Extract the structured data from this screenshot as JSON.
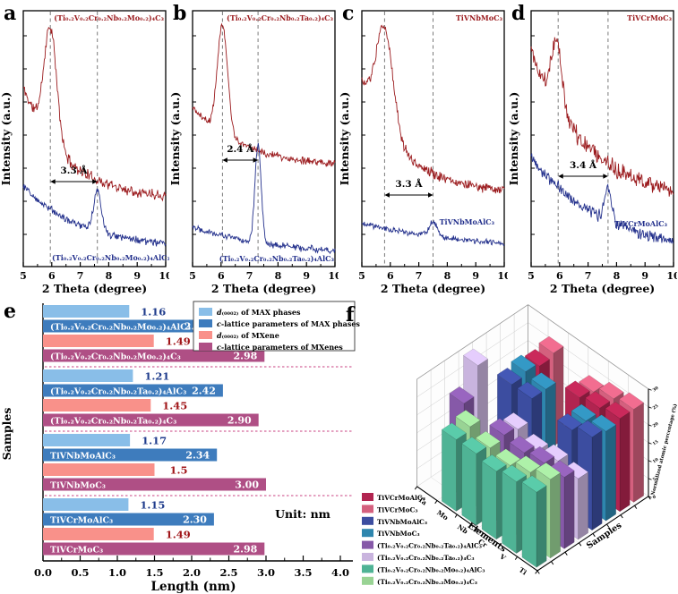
{
  "colors": {
    "mxene_curve": "#9B1B1E",
    "max_curve": "#23308C",
    "dashed_line": "#7a7a7a",
    "d_max_bar": "#89BEE8",
    "c_max_bar": "#3E7CBD",
    "d_mxene_bar": "#F9918A",
    "c_mxene_bar": "#AF4F85",
    "d_max_value_text": "#1F3C8C",
    "d_mxene_value_text": "#A01518",
    "group_separator": "#D4679A"
  },
  "chart_data": [
    {
      "id": "a",
      "letter": "a",
      "type": "line",
      "xlabel": "2 Theta (degree)",
      "ylabel": "Intensity (a.u.)",
      "xlim": [
        5,
        10
      ],
      "xticks": [
        5,
        6,
        7,
        8,
        9,
        10
      ],
      "series": [
        {
          "name": "(Ti₀.₂V₀.₂Cr₀.₂Nb₀.₂Mo₀.₂)₄C₃",
          "role": "MXene",
          "peak_2theta": 5.95
        },
        {
          "name": "(Ti₀.₂V₀.₂Cr₀.₂Nb₀.₂Mo₀.₂)₄AlC₃",
          "role": "MAX phase",
          "peak_2theta": 7.6
        }
      ],
      "dashed_lines": [
        5.95,
        7.6
      ],
      "annotation": {
        "text": "3.3 Å",
        "x1": 5.95,
        "x2": 7.6
      }
    },
    {
      "id": "b",
      "letter": "b",
      "type": "line",
      "xlabel": "2 Theta (degree)",
      "ylabel": "Intensity (a.u.)",
      "xlim": [
        5,
        10
      ],
      "xticks": [
        5,
        6,
        7,
        8,
        9,
        10
      ],
      "series": [
        {
          "name": "(Ti₀.₂V₀.₂Cr₀.₂Nb₀.₂Ta₀.₂)₄C₃",
          "role": "MXene",
          "peak_2theta": 6.05
        },
        {
          "name": "(Ti₀.₂V₀.₂Cr₀.₂Nb₀.₂Ta₀.₂)₄AlC₃",
          "role": "MAX phase",
          "peak_2theta": 7.3
        }
      ],
      "dashed_lines": [
        6.05,
        7.3
      ],
      "annotation": {
        "text": "2.4 Å",
        "x1": 6.05,
        "x2": 7.3
      }
    },
    {
      "id": "c",
      "letter": "c",
      "type": "line",
      "xlabel": "2 Theta (degree)",
      "ylabel": "Intensity (a.u.)",
      "xlim": [
        5,
        10
      ],
      "xticks": [
        5,
        6,
        7,
        8,
        9,
        10
      ],
      "series": [
        {
          "name": "TiVNbMoC₃",
          "role": "MXene",
          "peak_2theta": 5.8
        },
        {
          "name": "TiVNbMoAlC₃",
          "role": "MAX phase",
          "peak_2theta": 7.5
        }
      ],
      "dashed_lines": [
        5.8,
        7.5
      ],
      "annotation": {
        "text": "3.3 Å",
        "x1": 5.8,
        "x2": 7.5
      }
    },
    {
      "id": "d",
      "letter": "d",
      "type": "line",
      "xlabel": "2 Theta (degree)",
      "ylabel": "Intensity (a.u.)",
      "xlim": [
        5,
        10
      ],
      "xticks": [
        5,
        6,
        7,
        8,
        9,
        10
      ],
      "series": [
        {
          "name": "TiVCrMoC₃",
          "role": "MXene",
          "peak_2theta": 5.95
        },
        {
          "name": "TiVCrMoAlC₃",
          "role": "MAX phase",
          "peak_2theta": 7.7
        }
      ],
      "dashed_lines": [
        5.95,
        7.7
      ],
      "annotation": {
        "text": "3.4 Å",
        "x1": 5.95,
        "x2": 7.7
      }
    },
    {
      "id": "e",
      "letter": "e",
      "type": "bar",
      "orientation": "horizontal",
      "xlabel": "Length (nm)",
      "ylabel": "Samples",
      "xlim": [
        0,
        4
      ],
      "xticks": [
        "0.0",
        "0.5",
        "1.0",
        "1.5",
        "2.0",
        "2.5",
        "3.0",
        "3.5",
        "4.0"
      ],
      "unit_note": "Unit: nm",
      "legend": [
        {
          "series": "d_max",
          "label": "d₍₀₀₀₂₎ of MAX phases"
        },
        {
          "series": "c_max",
          "label": "c-lattice parameters of MAX phases"
        },
        {
          "series": "d_mxene",
          "label": "d₍₀₀₀₂₎ of MXene"
        },
        {
          "series": "c_mxene",
          "label": "c-lattice parameters of MXenes"
        }
      ],
      "groups": [
        {
          "bars": [
            {
              "series": "d_max",
              "value": 1.16,
              "display": "1.16"
            },
            {
              "series": "c_max",
              "label": "(Ti₀.₂V₀.₂Cr₀.₂Nb₀.₂Mo₀.₂)₄AlC₃",
              "value": 2.32,
              "display": "2.32"
            },
            {
              "series": "d_mxene",
              "value": 1.49,
              "display": "1.49"
            },
            {
              "series": "c_mxene",
              "label": "(Ti₀.₂V₀.₂Cr₀.₂Nb₀.₂Mo₀.₂)₄C₃",
              "value": 2.98,
              "display": "2.98"
            }
          ]
        },
        {
          "bars": [
            {
              "series": "d_max",
              "value": 1.21,
              "display": "1.21"
            },
            {
              "series": "c_max",
              "label": "(Ti₀.₂V₀.₂Cr₀.₂Nb₀.₂Ta₀.₂)₄AlC₃",
              "value": 2.42,
              "display": "2.42"
            },
            {
              "series": "d_mxene",
              "value": 1.45,
              "display": "1.45"
            },
            {
              "series": "c_mxene",
              "label": "(Ti₀.₂V₀.₂Cr₀.₂Nb₀.₂Ta₀.₂)₄C₃",
              "value": 2.9,
              "display": "2.90"
            }
          ]
        },
        {
          "bars": [
            {
              "series": "d_max",
              "value": 1.17,
              "display": "1.17"
            },
            {
              "series": "c_max",
              "label": "TiVNbMoAlC₃",
              "value": 2.34,
              "display": "2.34"
            },
            {
              "series": "d_mxene",
              "value": 1.5,
              "display": "1.5"
            },
            {
              "series": "c_mxene",
              "label": "TiVNbMoC₃",
              "value": 3.0,
              "display": "3.00"
            }
          ]
        },
        {
          "bars": [
            {
              "series": "d_max",
              "value": 1.15,
              "display": "1.15"
            },
            {
              "series": "c_max",
              "label": "TiVCrMoAlC₃",
              "value": 2.3,
              "display": "2.30"
            },
            {
              "series": "d_mxene",
              "value": 1.49,
              "display": "1.49"
            },
            {
              "series": "c_mxene",
              "label": "TiVCrMoC₃",
              "value": 2.98,
              "display": "2.98"
            }
          ]
        }
      ]
    },
    {
      "id": "f",
      "letter": "f",
      "type": "bar3d",
      "xlabel": "Elements",
      "ylabel": "Samples",
      "zlabel": "Normalized atomic percentage (%)",
      "elements": [
        "Ta",
        "Mo",
        "Nb",
        "Cr",
        "V",
        "Ti"
      ],
      "zticks": [
        0,
        5,
        10,
        15,
        20,
        25,
        30
      ],
      "series_front_to_back": [
        {
          "name": "(Ti₀.₂V₀.₂Cr₀.₂Nb₀.₂Mo₀.₂)₄AlC₃",
          "color": "#4FB395",
          "values": [
            0,
            20,
            20,
            19,
            20,
            21
          ]
        },
        {
          "name": "(Ti₀.₂V₀.₂Cr₀.₂Nb₀.₂Mo₀.₂)₄C₃",
          "color": "#99D394",
          "values": [
            0,
            21,
            19,
            18,
            20,
            22
          ]
        },
        {
          "name": "(Ti₀.₂V₀.₂Cr₀.₂Nb₀.₂Ta₀.₂)₄AlC₃",
          "color": "#8659A8",
          "values": [
            21,
            0,
            20,
            19,
            20,
            20
          ]
        },
        {
          "name": "(Ti₀.₂V₀.₂Cr₀.₂Nb₀.₂Ta₀.₂)₄C₃",
          "color": "#C9B4DE",
          "values": [
            29,
            0,
            19,
            17,
            18,
            17
          ]
        },
        {
          "name": "TiVNbMoAlC₃",
          "color": "#3C4DA0",
          "values": [
            0,
            25,
            25,
            0,
            24,
            26
          ]
        },
        {
          "name": "TiVNbMoC₃",
          "color": "#2E86AE",
          "values": [
            0,
            26,
            25,
            0,
            24,
            25
          ]
        },
        {
          "name": "TiVCrMoAlC₃",
          "color": "#B12450",
          "values": [
            0,
            25,
            0,
            24,
            25,
            26
          ]
        },
        {
          "name": "TiVCrMoC₃",
          "color": "#D4607E",
          "values": [
            0,
            26,
            0,
            23,
            25,
            26
          ]
        }
      ],
      "legend": [
        {
          "label": "TiVCrMoAlC₃",
          "color": "#B12450"
        },
        {
          "label": "TiVCrMoC₃",
          "color": "#D4607E"
        },
        {
          "label": "TiVNbMoAlC₃",
          "color": "#3C4DA0"
        },
        {
          "label": "TiVNbMoC₃",
          "color": "#2E86AE"
        },
        {
          "label": "(Ti₀.₂V₀.₂Cr₀.₂Nb₀.₂Ta₀.₂)₄AlC₃",
          "color": "#8659A8"
        },
        {
          "label": "(Ti₀.₂V₀.₂Cr₀.₂Nb₀.₂Ta₀.₂)₄C₃",
          "color": "#C9B4DE"
        },
        {
          "label": "(Ti₀.₂V₀.₂Cr₀.₂Nb₀.₂Mo₀.₂)₄AlC₃",
          "color": "#4FB395"
        },
        {
          "label": "(Ti₀.₂V₀.₂Cr₀.₂Nb₀.₂Mo₀.₂)₄C₃",
          "color": "#99D394"
        }
      ]
    }
  ]
}
